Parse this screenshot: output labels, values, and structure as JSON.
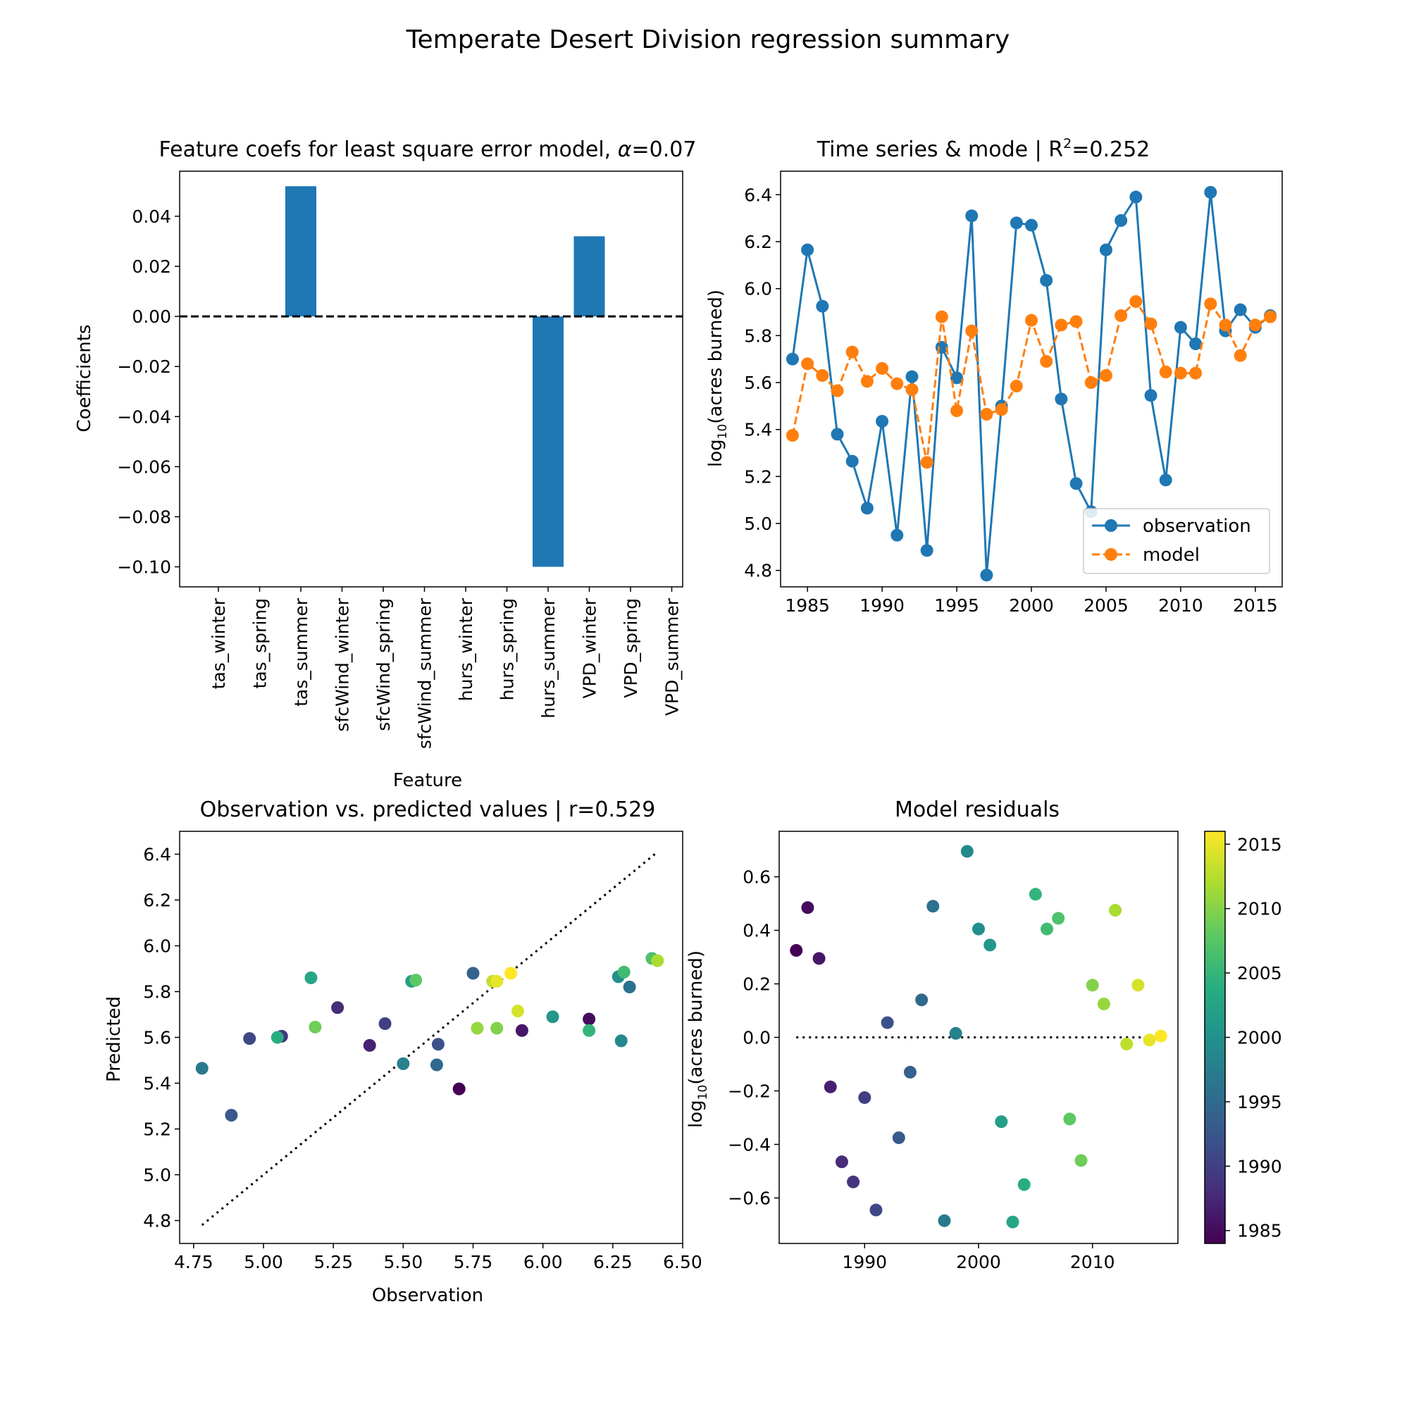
{
  "figure": {
    "title": "Temperate Desert Division regression summary"
  },
  "chart_data": [
    {
      "type": "bar",
      "title": "Feature coefs for least square error model, α=0.07",
      "title_prefix": "Feature coefs for least square error model, ",
      "title_symbol": "α",
      "title_suffix": "=0.07",
      "xlabel": "Feature",
      "ylabel": "Coefficients",
      "categories": [
        "tas_winter",
        "tas_spring",
        "tas_summer",
        "sfcWind_winter",
        "sfcWind_spring",
        "sfcWind_summer",
        "hurs_winter",
        "hurs_spring",
        "hurs_summer",
        "VPD_winter",
        "VPD_spring",
        "VPD_summer"
      ],
      "values": [
        0,
        0,
        0.052,
        0,
        0,
        0,
        0,
        0,
        -0.1,
        0.032,
        0,
        0
      ],
      "yticks": [
        "0.04",
        "0.02",
        "0.00",
        "−0.02",
        "−0.04",
        "−0.06",
        "−0.08",
        "−0.10"
      ],
      "ytick_values": [
        0.04,
        0.02,
        0.0,
        -0.02,
        -0.04,
        -0.06,
        -0.08,
        -0.1
      ],
      "ylim": [
        -0.108,
        0.058
      ],
      "reference_line": 0,
      "color": "#1f77b4"
    },
    {
      "type": "line",
      "title": "Time series & mode | R2=0.252",
      "title_main": "Time series & mode | R",
      "title_sup": "2",
      "title_end": "=0.252",
      "ylabel": "log10(acres burned)",
      "ylabel_main": "log",
      "ylabel_sub": "10",
      "ylabel_end": "(acres burned)",
      "x": [
        1984,
        1985,
        1986,
        1987,
        1988,
        1989,
        1990,
        1991,
        1992,
        1993,
        1994,
        1995,
        1996,
        1997,
        1998,
        1999,
        2000,
        2001,
        2002,
        2003,
        2004,
        2005,
        2006,
        2007,
        2008,
        2009,
        2010,
        2011,
        2012,
        2013,
        2014,
        2015,
        2016
      ],
      "series": [
        {
          "name": "observation",
          "color": "#1f77b4",
          "values": [
            5.7,
            6.165,
            5.925,
            5.38,
            5.265,
            5.065,
            5.435,
            4.95,
            5.625,
            4.885,
            5.75,
            5.62,
            6.31,
            4.78,
            5.5,
            6.28,
            6.27,
            6.035,
            5.53,
            5.17,
            5.05,
            6.165,
            6.29,
            6.39,
            5.545,
            5.185,
            5.835,
            5.765,
            6.41,
            5.82,
            5.91,
            5.835,
            5.885
          ]
        },
        {
          "name": "model",
          "color": "#ff7f0e",
          "values": [
            5.375,
            5.68,
            5.63,
            5.565,
            5.73,
            5.605,
            5.66,
            5.595,
            5.57,
            5.26,
            5.88,
            5.48,
            5.82,
            5.465,
            5.485,
            5.585,
            5.865,
            5.69,
            5.845,
            5.86,
            5.6,
            5.63,
            5.885,
            5.945,
            5.85,
            5.645,
            5.64,
            5.64,
            5.935,
            5.845,
            5.715,
            5.845,
            5.88
          ]
        }
      ],
      "xticks": [
        1985,
        1990,
        1995,
        2000,
        2005,
        2010,
        2015
      ],
      "yticks": [
        4.8,
        5.0,
        5.2,
        5.4,
        5.6,
        5.8,
        6.0,
        6.2,
        6.4
      ],
      "xlim": [
        1983.2,
        2016.8
      ],
      "ylim": [
        4.73,
        6.5
      ],
      "legend_position": "lower-right"
    },
    {
      "type": "scatter",
      "title": "Observation vs. predicted values | r=0.529",
      "xlabel": "Observation",
      "ylabel": "Predicted",
      "x": [
        5.7,
        6.165,
        5.925,
        5.38,
        5.265,
        5.065,
        5.435,
        4.95,
        5.625,
        4.885,
        5.75,
        5.62,
        6.31,
        4.78,
        5.5,
        6.28,
        6.27,
        6.035,
        5.53,
        5.17,
        5.05,
        6.165,
        6.29,
        6.39,
        5.545,
        5.185,
        5.835,
        5.765,
        6.41,
        5.82,
        5.91,
        5.835,
        5.885
      ],
      "y": [
        5.375,
        5.68,
        5.63,
        5.565,
        5.73,
        5.605,
        5.66,
        5.595,
        5.57,
        5.26,
        5.88,
        5.48,
        5.82,
        5.465,
        5.485,
        5.585,
        5.865,
        5.69,
        5.845,
        5.86,
        5.6,
        5.63,
        5.885,
        5.945,
        5.85,
        5.645,
        5.64,
        5.64,
        5.935,
        5.845,
        5.715,
        5.845,
        5.88
      ],
      "year": [
        1984,
        1985,
        1986,
        1987,
        1988,
        1989,
        1990,
        1991,
        1992,
        1993,
        1994,
        1995,
        1996,
        1997,
        1998,
        1999,
        2000,
        2001,
        2002,
        2003,
        2004,
        2005,
        2006,
        2007,
        2008,
        2009,
        2010,
        2011,
        2012,
        2013,
        2014,
        2015,
        2016
      ],
      "identity_line": [
        4.78,
        6.41
      ],
      "xticks": [
        "4.75",
        "5.00",
        "5.25",
        "5.50",
        "5.75",
        "6.00",
        "6.25",
        "6.50"
      ],
      "xtick_values": [
        4.75,
        5.0,
        5.25,
        5.5,
        5.75,
        6.0,
        6.25,
        6.5
      ],
      "yticks": [
        4.8,
        5.0,
        5.2,
        5.4,
        5.6,
        5.8,
        6.0,
        6.2,
        6.4
      ],
      "xlim": [
        4.7,
        6.5
      ],
      "ylim": [
        4.7,
        6.5
      ],
      "colormap": "viridis"
    },
    {
      "type": "scatter",
      "title": "Model residuals",
      "ylabel": "log10(acres burned)",
      "ylabel_main": "log",
      "ylabel_sub": "10",
      "ylabel_end": "(acres burned)",
      "x": [
        1984,
        1985,
        1986,
        1987,
        1988,
        1989,
        1990,
        1991,
        1992,
        1993,
        1994,
        1995,
        1996,
        1997,
        1998,
        1999,
        2000,
        2001,
        2002,
        2003,
        2004,
        2005,
        2006,
        2007,
        2008,
        2009,
        2010,
        2011,
        2012,
        2013,
        2014,
        2015,
        2016
      ],
      "y": [
        0.325,
        0.485,
        0.295,
        -0.185,
        -0.465,
        -0.54,
        -0.225,
        -0.645,
        0.055,
        -0.375,
        -0.13,
        0.14,
        0.49,
        -0.685,
        0.015,
        0.695,
        0.405,
        0.345,
        -0.315,
        -0.69,
        -0.55,
        0.535,
        0.405,
        0.445,
        -0.305,
        -0.46,
        0.195,
        0.125,
        0.475,
        -0.025,
        0.195,
        -0.01,
        0.005
      ],
      "reference_line": 0,
      "xticks": [
        1990,
        2000,
        2010
      ],
      "yticks": [
        "0.6",
        "0.4",
        "0.2",
        "0.0",
        "−0.2",
        "−0.4",
        "−0.6"
      ],
      "ytick_values": [
        0.6,
        0.4,
        0.2,
        0.0,
        -0.2,
        -0.4,
        -0.6
      ],
      "xlim": [
        1982.5,
        2017.5
      ],
      "ylim": [
        -0.77,
        0.77
      ],
      "colormap": "viridis",
      "colorbar": {
        "ticks": [
          1985,
          1990,
          1995,
          2000,
          2005,
          2010,
          2015
        ],
        "range": [
          1984,
          2016
        ]
      }
    }
  ]
}
